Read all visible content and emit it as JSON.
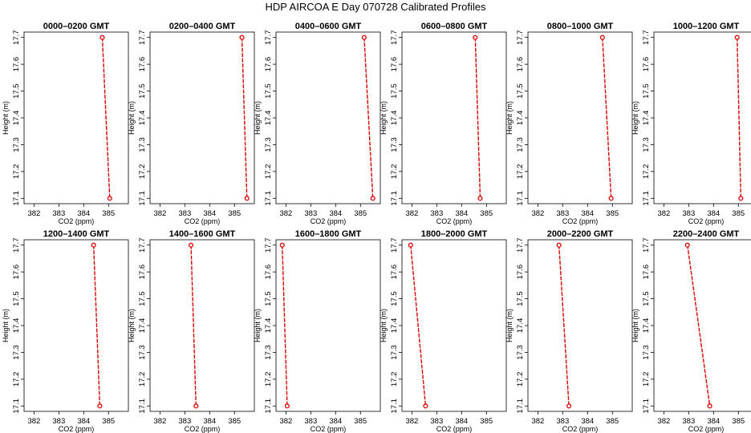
{
  "title": "HDP  AIRCOA E  Day 070728  Calibrated Profiles",
  "colors": {
    "series": "#dd0000",
    "axis": "#000000"
  },
  "chart_data": {
    "type": "line",
    "layout_grid": "2 rows x 6 columns",
    "xlabel": "CO2 (ppm)",
    "ylabel": "Height (m)",
    "xlim": [
      381.6,
      385.8
    ],
    "ylim": [
      17.08,
      17.72
    ],
    "xticks": [
      382,
      383,
      384,
      385
    ],
    "yticks": [
      17.1,
      17.2,
      17.3,
      17.4,
      17.5,
      17.6,
      17.7
    ],
    "panels": [
      {
        "title": "0000–0200 GMT",
        "points": [
          {
            "co2": 384.75,
            "height": 17.7
          },
          {
            "co2": 385.05,
            "height": 17.1
          }
        ]
      },
      {
        "title": "0200–0400 GMT",
        "points": [
          {
            "co2": 385.3,
            "height": 17.7
          },
          {
            "co2": 385.5,
            "height": 17.1
          }
        ]
      },
      {
        "title": "0400–0600 GMT",
        "points": [
          {
            "co2": 385.15,
            "height": 17.7
          },
          {
            "co2": 385.5,
            "height": 17.1
          }
        ]
      },
      {
        "title": "0600–0800 GMT",
        "points": [
          {
            "co2": 384.55,
            "height": 17.7
          },
          {
            "co2": 384.75,
            "height": 17.1
          }
        ]
      },
      {
        "title": "0800–1000 GMT",
        "points": [
          {
            "co2": 384.6,
            "height": 17.7
          },
          {
            "co2": 384.95,
            "height": 17.1
          }
        ]
      },
      {
        "title": "1000–1200 GMT",
        "points": [
          {
            "co2": 384.95,
            "height": 17.7
          },
          {
            "co2": 385.1,
            "height": 17.1
          }
        ]
      },
      {
        "title": "1200–1400 GMT",
        "points": [
          {
            "co2": 384.4,
            "height": 17.7
          },
          {
            "co2": 384.65,
            "height": 17.1
          }
        ]
      },
      {
        "title": "1400–1600 GMT",
        "points": [
          {
            "co2": 383.25,
            "height": 17.7
          },
          {
            "co2": 383.45,
            "height": 17.1
          }
        ]
      },
      {
        "title": "1600–1800 GMT",
        "points": [
          {
            "co2": 381.85,
            "height": 17.7
          },
          {
            "co2": 382.05,
            "height": 17.1
          }
        ]
      },
      {
        "title": "1800–2000 GMT",
        "points": [
          {
            "co2": 381.95,
            "height": 17.7
          },
          {
            "co2": 382.55,
            "height": 17.1
          }
        ]
      },
      {
        "title": "2000–2200 GMT",
        "points": [
          {
            "co2": 382.85,
            "height": 17.7
          },
          {
            "co2": 383.25,
            "height": 17.1
          }
        ]
      },
      {
        "title": "2200–2400 GMT",
        "points": [
          {
            "co2": 382.95,
            "height": 17.7
          },
          {
            "co2": 383.85,
            "height": 17.1
          }
        ]
      }
    ]
  }
}
